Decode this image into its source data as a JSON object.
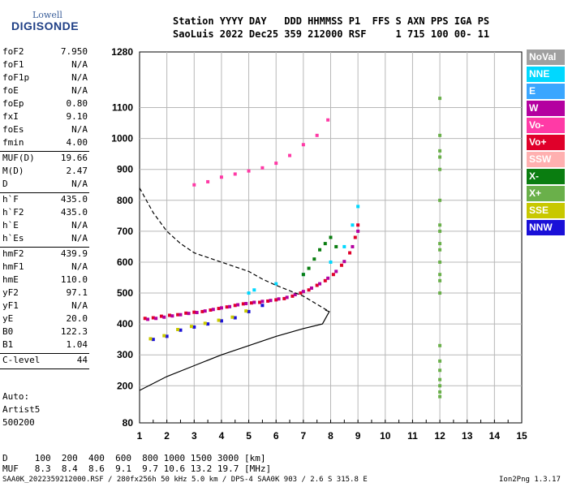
{
  "logo": {
    "brand": "Lowell",
    "product": "DIGISONDE"
  },
  "header": {
    "line1": "Station YYYY DAY   DDD HHMMSS P1  FFS S AXN PPS IGA PS",
    "line2": "SaoLuis 2022 Dec25 359 212000 RSF     1 715 100 00- 11"
  },
  "parameters": [
    {
      "name": "foF2",
      "value": "7.950"
    },
    {
      "name": "foF1",
      "value": "N/A"
    },
    {
      "name": "foF1p",
      "value": "N/A"
    },
    {
      "name": "foE",
      "value": "N/A"
    },
    {
      "name": "foEp",
      "value": "0.80"
    },
    {
      "name": "fxI",
      "value": "9.10"
    },
    {
      "name": "foEs",
      "value": "N/A"
    },
    {
      "name": "fmin",
      "value": "4.00"
    },
    {
      "name": "MUF(D)",
      "value": "19.66"
    },
    {
      "name": "M(D)",
      "value": "2.47"
    },
    {
      "name": "D",
      "value": "N/A"
    },
    {
      "name": "h`F",
      "value": "435.0"
    },
    {
      "name": "h`F2",
      "value": "435.0"
    },
    {
      "name": "h`E",
      "value": "N/A"
    },
    {
      "name": "h`Es",
      "value": "N/A"
    },
    {
      "name": "hmF2",
      "value": "439.9"
    },
    {
      "name": "hmF1",
      "value": "N/A"
    },
    {
      "name": "hmE",
      "value": "110.0"
    },
    {
      "name": "yF2",
      "value": "97.1"
    },
    {
      "name": "yF1",
      "value": "N/A"
    },
    {
      "name": "yE",
      "value": "20.0"
    },
    {
      "name": "B0",
      "value": "122.3"
    },
    {
      "name": "B1",
      "value": "1.04"
    },
    {
      "name": "C-level",
      "value": "44"
    }
  ],
  "autoscale": {
    "line1": "Auto:",
    "line2": "Artist5",
    "line3": "500200"
  },
  "muf_table": {
    "line1": "D     100  200  400  600  800 1000 1500 3000 [km]",
    "line2": "MUF   8.3  8.4  8.6  9.1  9.7 10.6 13.2 19.7 [MHz]"
  },
  "footer": {
    "left": "SAA0K_2022359212000.RSF / 280fx256h 50 kHz 5.0 km / DPS-4 SAA0K 903 / 2.6 S 315.8 E",
    "right": "Ion2Png 1.3.17"
  },
  "legend": [
    {
      "label": "NoVal",
      "color": "#a0a0a0"
    },
    {
      "label": "NNE",
      "color": "#00d8ff"
    },
    {
      "label": "E",
      "color": "#3aa6ff"
    },
    {
      "label": "W",
      "color": "#b400a0"
    },
    {
      "label": "Vo-",
      "color": "#ff3aa6"
    },
    {
      "label": "Vo+",
      "color": "#e0002a"
    },
    {
      "label": "SSW",
      "color": "#ffb0b0"
    },
    {
      "label": "X-",
      "color": "#0a7d10"
    },
    {
      "label": "X+",
      "color": "#6ab04a"
    },
    {
      "label": "SSE",
      "color": "#c8c800"
    },
    {
      "label": "NNW",
      "color": "#1a10d8"
    }
  ],
  "chart_data": {
    "type": "scatter",
    "x_ticks": [
      1,
      2,
      3,
      4,
      5,
      6,
      7,
      8,
      9,
      10,
      11,
      12,
      13,
      14,
      15
    ],
    "y_ticks": [
      80,
      200,
      300,
      400,
      500,
      600,
      700,
      800,
      900,
      1000,
      1100,
      1280
    ],
    "xlim": [
      1,
      15
    ],
    "ylim": [
      80,
      1280
    ],
    "grid": true,
    "series": [
      {
        "legend": "Vo+",
        "points": [
          [
            1.2,
            418
          ],
          [
            1.5,
            420
          ],
          [
            1.8,
            425
          ],
          [
            2.1,
            428
          ],
          [
            2.4,
            430
          ],
          [
            2.7,
            435
          ],
          [
            3.0,
            438
          ],
          [
            3.3,
            440
          ],
          [
            3.6,
            445
          ],
          [
            3.9,
            450
          ],
          [
            4.2,
            455
          ],
          [
            4.5,
            460
          ],
          [
            4.8,
            465
          ],
          [
            5.1,
            468
          ],
          [
            5.4,
            470
          ],
          [
            5.7,
            474
          ],
          [
            6.0,
            478
          ],
          [
            6.3,
            482
          ],
          [
            6.6,
            490
          ],
          [
            6.9,
            500
          ],
          [
            7.2,
            510
          ],
          [
            7.5,
            525
          ],
          [
            7.8,
            540
          ],
          [
            8.1,
            560
          ],
          [
            8.4,
            590
          ],
          [
            8.7,
            630
          ],
          [
            8.9,
            680
          ],
          [
            9.0,
            720
          ]
        ]
      },
      {
        "legend": "W",
        "points": [
          [
            1.3,
            415
          ],
          [
            1.6,
            418
          ],
          [
            1.9,
            422
          ],
          [
            2.2,
            426
          ],
          [
            2.5,
            430
          ],
          [
            2.8,
            434
          ],
          [
            3.1,
            437
          ],
          [
            3.4,
            442
          ],
          [
            3.7,
            447
          ],
          [
            4.0,
            452
          ],
          [
            4.3,
            456
          ],
          [
            4.6,
            462
          ],
          [
            4.9,
            466
          ],
          [
            5.2,
            470
          ],
          [
            5.5,
            473
          ],
          [
            5.8,
            476
          ],
          [
            6.1,
            481
          ],
          [
            6.4,
            486
          ],
          [
            6.7,
            495
          ],
          [
            7.0,
            505
          ],
          [
            7.3,
            516
          ],
          [
            7.6,
            530
          ],
          [
            7.9,
            548
          ],
          [
            8.2,
            570
          ],
          [
            8.5,
            602
          ],
          [
            8.8,
            650
          ],
          [
            9.0,
            700
          ]
        ]
      },
      {
        "legend": "NNE",
        "points": [
          [
            5.0,
            500
          ],
          [
            5.2,
            510
          ],
          [
            6.0,
            530
          ],
          [
            7.0,
            560
          ],
          [
            8.0,
            600
          ],
          [
            8.5,
            650
          ],
          [
            8.8,
            720
          ],
          [
            9.0,
            780
          ]
        ]
      },
      {
        "legend": "X-",
        "points": [
          [
            7.4,
            610
          ],
          [
            7.6,
            640
          ],
          [
            7.8,
            660
          ],
          [
            8.0,
            680
          ],
          [
            8.2,
            650
          ],
          [
            7.2,
            580
          ],
          [
            7.0,
            560
          ]
        ]
      },
      {
        "legend": "NNW",
        "points": [
          [
            1.5,
            350
          ],
          [
            2.0,
            360
          ],
          [
            2.5,
            380
          ],
          [
            3.0,
            390
          ],
          [
            3.5,
            400
          ],
          [
            4.0,
            410
          ],
          [
            4.5,
            420
          ],
          [
            5.0,
            440
          ],
          [
            5.5,
            460
          ]
        ]
      },
      {
        "legend": "SSE",
        "points": [
          [
            1.4,
            352
          ],
          [
            1.9,
            362
          ],
          [
            2.4,
            382
          ],
          [
            2.9,
            392
          ],
          [
            3.4,
            402
          ],
          [
            3.9,
            412
          ],
          [
            4.4,
            422
          ],
          [
            4.9,
            442
          ]
        ]
      },
      {
        "legend": "Vo-",
        "points": [
          [
            3.0,
            850
          ],
          [
            3.5,
            860
          ],
          [
            4.0,
            875
          ],
          [
            4.5,
            885
          ],
          [
            5.0,
            895
          ],
          [
            5.5,
            905
          ],
          [
            6.0,
            920
          ],
          [
            6.5,
            945
          ],
          [
            7.0,
            980
          ],
          [
            7.5,
            1010
          ],
          [
            7.9,
            1060
          ]
        ]
      },
      {
        "legend": "X+",
        "points": [
          [
            12,
            1130
          ],
          [
            12,
            1010
          ],
          [
            12,
            960
          ],
          [
            12,
            940
          ],
          [
            12,
            900
          ],
          [
            12,
            800
          ],
          [
            12,
            720
          ],
          [
            12,
            700
          ],
          [
            12,
            660
          ],
          [
            12,
            640
          ],
          [
            12,
            600
          ],
          [
            12,
            560
          ],
          [
            12,
            540
          ],
          [
            12,
            500
          ],
          [
            12,
            330
          ],
          [
            12,
            280
          ],
          [
            12,
            250
          ],
          [
            12,
            220
          ],
          [
            12,
            200
          ],
          [
            12,
            180
          ],
          [
            12,
            165
          ]
        ]
      }
    ],
    "lines": [
      {
        "name": "profile",
        "style": "solid",
        "points": [
          [
            1,
            185
          ],
          [
            2,
            230
          ],
          [
            3,
            265
          ],
          [
            4,
            300
          ],
          [
            5,
            330
          ],
          [
            6,
            360
          ],
          [
            7,
            385
          ],
          [
            7.7,
            400
          ],
          [
            7.95,
            440
          ],
          [
            7.8,
            445
          ]
        ]
      },
      {
        "name": "model",
        "style": "dashed",
        "points": [
          [
            1,
            840
          ],
          [
            1.5,
            760
          ],
          [
            2,
            700
          ],
          [
            2.5,
            660
          ],
          [
            3,
            630
          ],
          [
            4,
            600
          ],
          [
            5,
            570
          ],
          [
            5.5,
            545
          ],
          [
            6,
            525
          ],
          [
            7,
            490
          ],
          [
            7.95,
            440
          ]
        ]
      }
    ]
  }
}
